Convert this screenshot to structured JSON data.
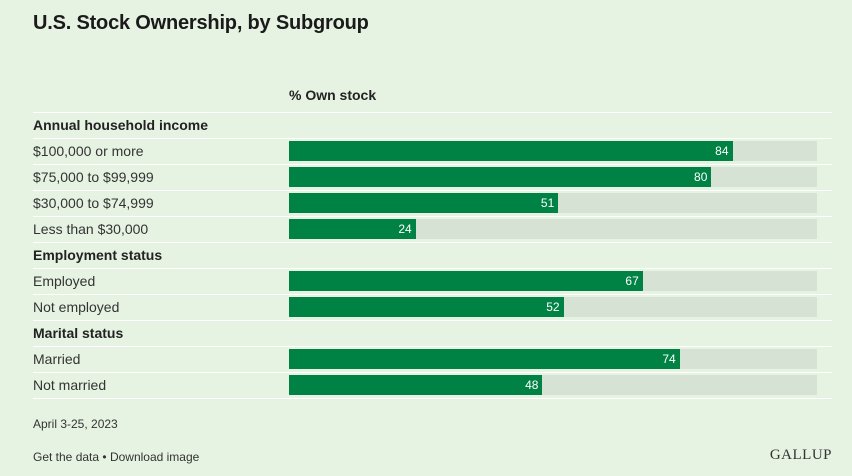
{
  "chart_data": {
    "type": "bar",
    "orientation": "horizontal",
    "title": "U.S. Stock Ownership, by Subgroup",
    "column_header": "% Own stock",
    "xlim": [
      0,
      100
    ],
    "groups": [
      {
        "label": "Annual household income",
        "rows": [
          {
            "label": "$100,000 or more",
            "value": 84
          },
          {
            "label": "$75,000 to $99,999",
            "value": 80
          },
          {
            "label": "$30,000 to $74,999",
            "value": 51
          },
          {
            "label": "Less than $30,000",
            "value": 24
          }
        ]
      },
      {
        "label": "Employment status",
        "rows": [
          {
            "label": "Employed",
            "value": 67
          },
          {
            "label": "Not employed",
            "value": 52
          }
        ]
      },
      {
        "label": "Marital status",
        "rows": [
          {
            "label": "Married",
            "value": 74
          },
          {
            "label": "Not married",
            "value": 48
          }
        ]
      }
    ],
    "colors": {
      "bar": "#008244",
      "track": "#d6e3d4",
      "background": "#e6f3e3"
    }
  },
  "footer": {
    "date_range": "April 3-25, 2023",
    "get_data_link": "Get the data",
    "separator": "•",
    "download_link": "Download image",
    "logo_text": "GALLUP"
  }
}
